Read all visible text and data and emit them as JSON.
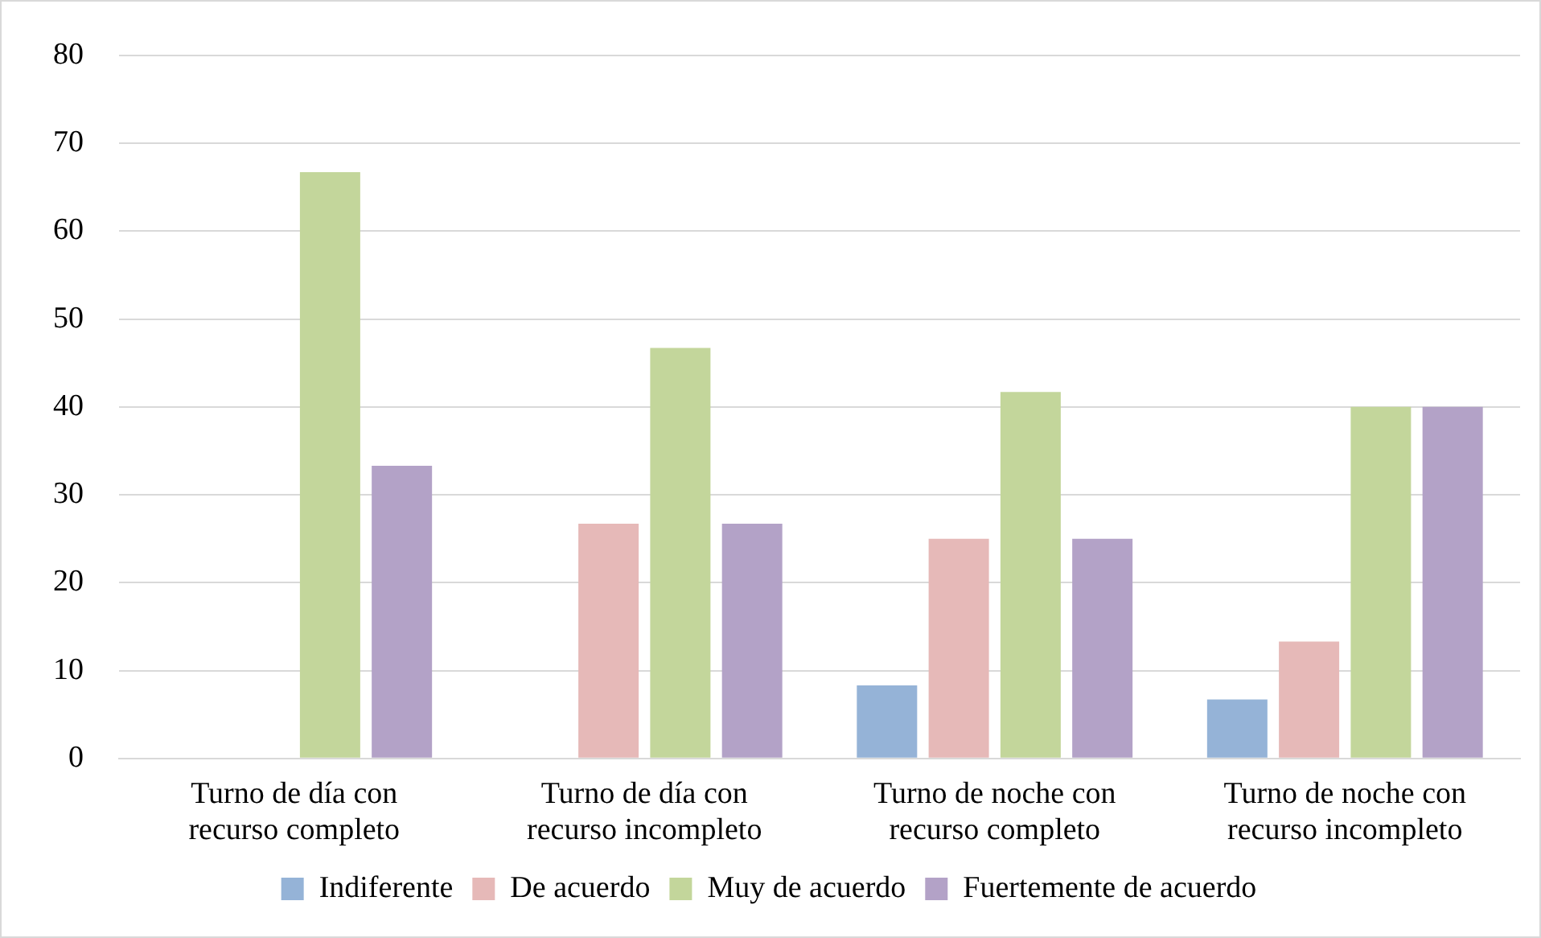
{
  "chart_data": {
    "type": "bar",
    "categories": [
      "Turno de día con\nrecurso completo",
      "Turno de día con\nrecurso incompleto",
      "Turno de noche con\nrecurso completo",
      "Turno de noche con\nrecurso incompleto"
    ],
    "series": [
      {
        "name": "Indiferente",
        "color": "#95b3d7",
        "values": [
          0,
          0,
          8.3,
          6.7
        ]
      },
      {
        "name": "De acuerdo",
        "color": "#e6b9b8",
        "values": [
          0,
          26.7,
          25,
          13.3
        ]
      },
      {
        "name": "Muy de acuerdo",
        "color": "#c3d69b",
        "values": [
          66.7,
          46.7,
          41.7,
          40
        ]
      },
      {
        "name": "Fuertemente de acuerdo",
        "color": "#b3a2c7",
        "values": [
          33.3,
          26.7,
          25,
          40
        ]
      }
    ],
    "ylim": [
      0,
      80
    ],
    "yticks": [
      0,
      10,
      20,
      30,
      40,
      50,
      60,
      70,
      80
    ],
    "grid": "y",
    "legend": "bottom"
  }
}
